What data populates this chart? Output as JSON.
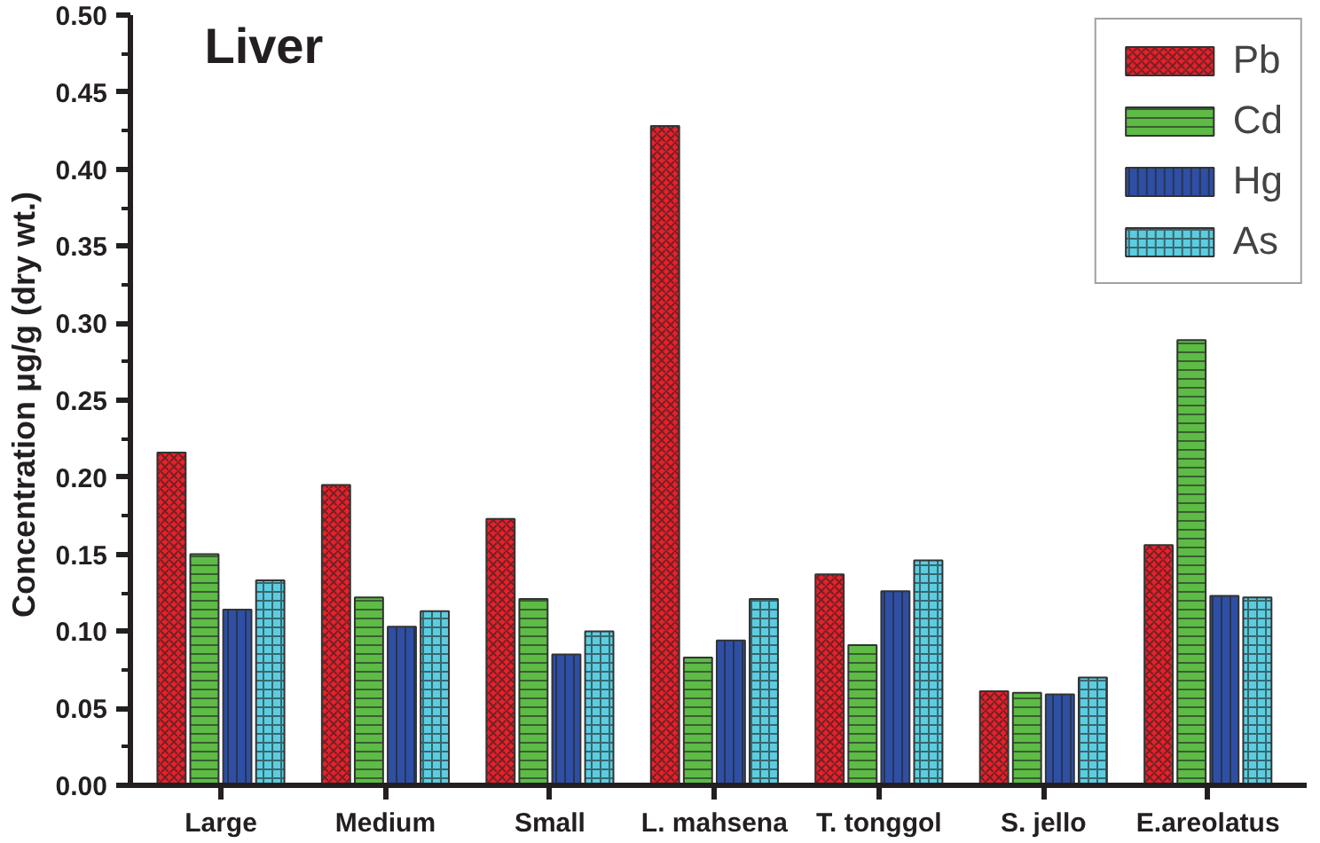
{
  "chart_data": {
    "type": "bar",
    "title": "Liver",
    "ylabel": "Concentration  μg/g (dry wt.)",
    "categories": [
      "Large",
      "Medium",
      "Small",
      "L. mahsena",
      "T. tonggol",
      "S. jello",
      "E.areolatus"
    ],
    "series": [
      {
        "name": "Pb",
        "color": "#e8202a",
        "values": [
          0.216,
          0.195,
          0.173,
          0.428,
          0.137,
          0.061,
          0.156
        ]
      },
      {
        "name": "Cd",
        "color": "#5dbb46",
        "values": [
          0.15,
          0.122,
          0.121,
          0.083,
          0.091,
          0.06,
          0.289
        ]
      },
      {
        "name": "Hg",
        "color": "#2e4fa3",
        "values": [
          0.114,
          0.103,
          0.085,
          0.094,
          0.126,
          0.059,
          0.123
        ]
      },
      {
        "name": "As",
        "color": "#5ccde0",
        "values": [
          0.133,
          0.113,
          0.1,
          0.121,
          0.146,
          0.07,
          0.122
        ]
      }
    ],
    "ylim": [
      0,
      0.5
    ],
    "yticks": [
      {
        "value": 0,
        "label": "0.00"
      },
      {
        "value": 0.05,
        "label": "0.05"
      },
      {
        "value": 0.1,
        "label": "0.10"
      },
      {
        "value": 0.15,
        "label": "0.15"
      },
      {
        "value": 0.2,
        "label": "0.20"
      },
      {
        "value": 0.25,
        "label": "0.25"
      },
      {
        "value": 0.3,
        "label": "0.30"
      },
      {
        "value": 0.35,
        "label": "0.35"
      },
      {
        "value": 0.4,
        "label": "0.40"
      },
      {
        "value": 0.45,
        "label": "0.45"
      },
      {
        "value": 0.5,
        "label": "0.50"
      }
    ],
    "grid": false,
    "legend": "top right"
  }
}
